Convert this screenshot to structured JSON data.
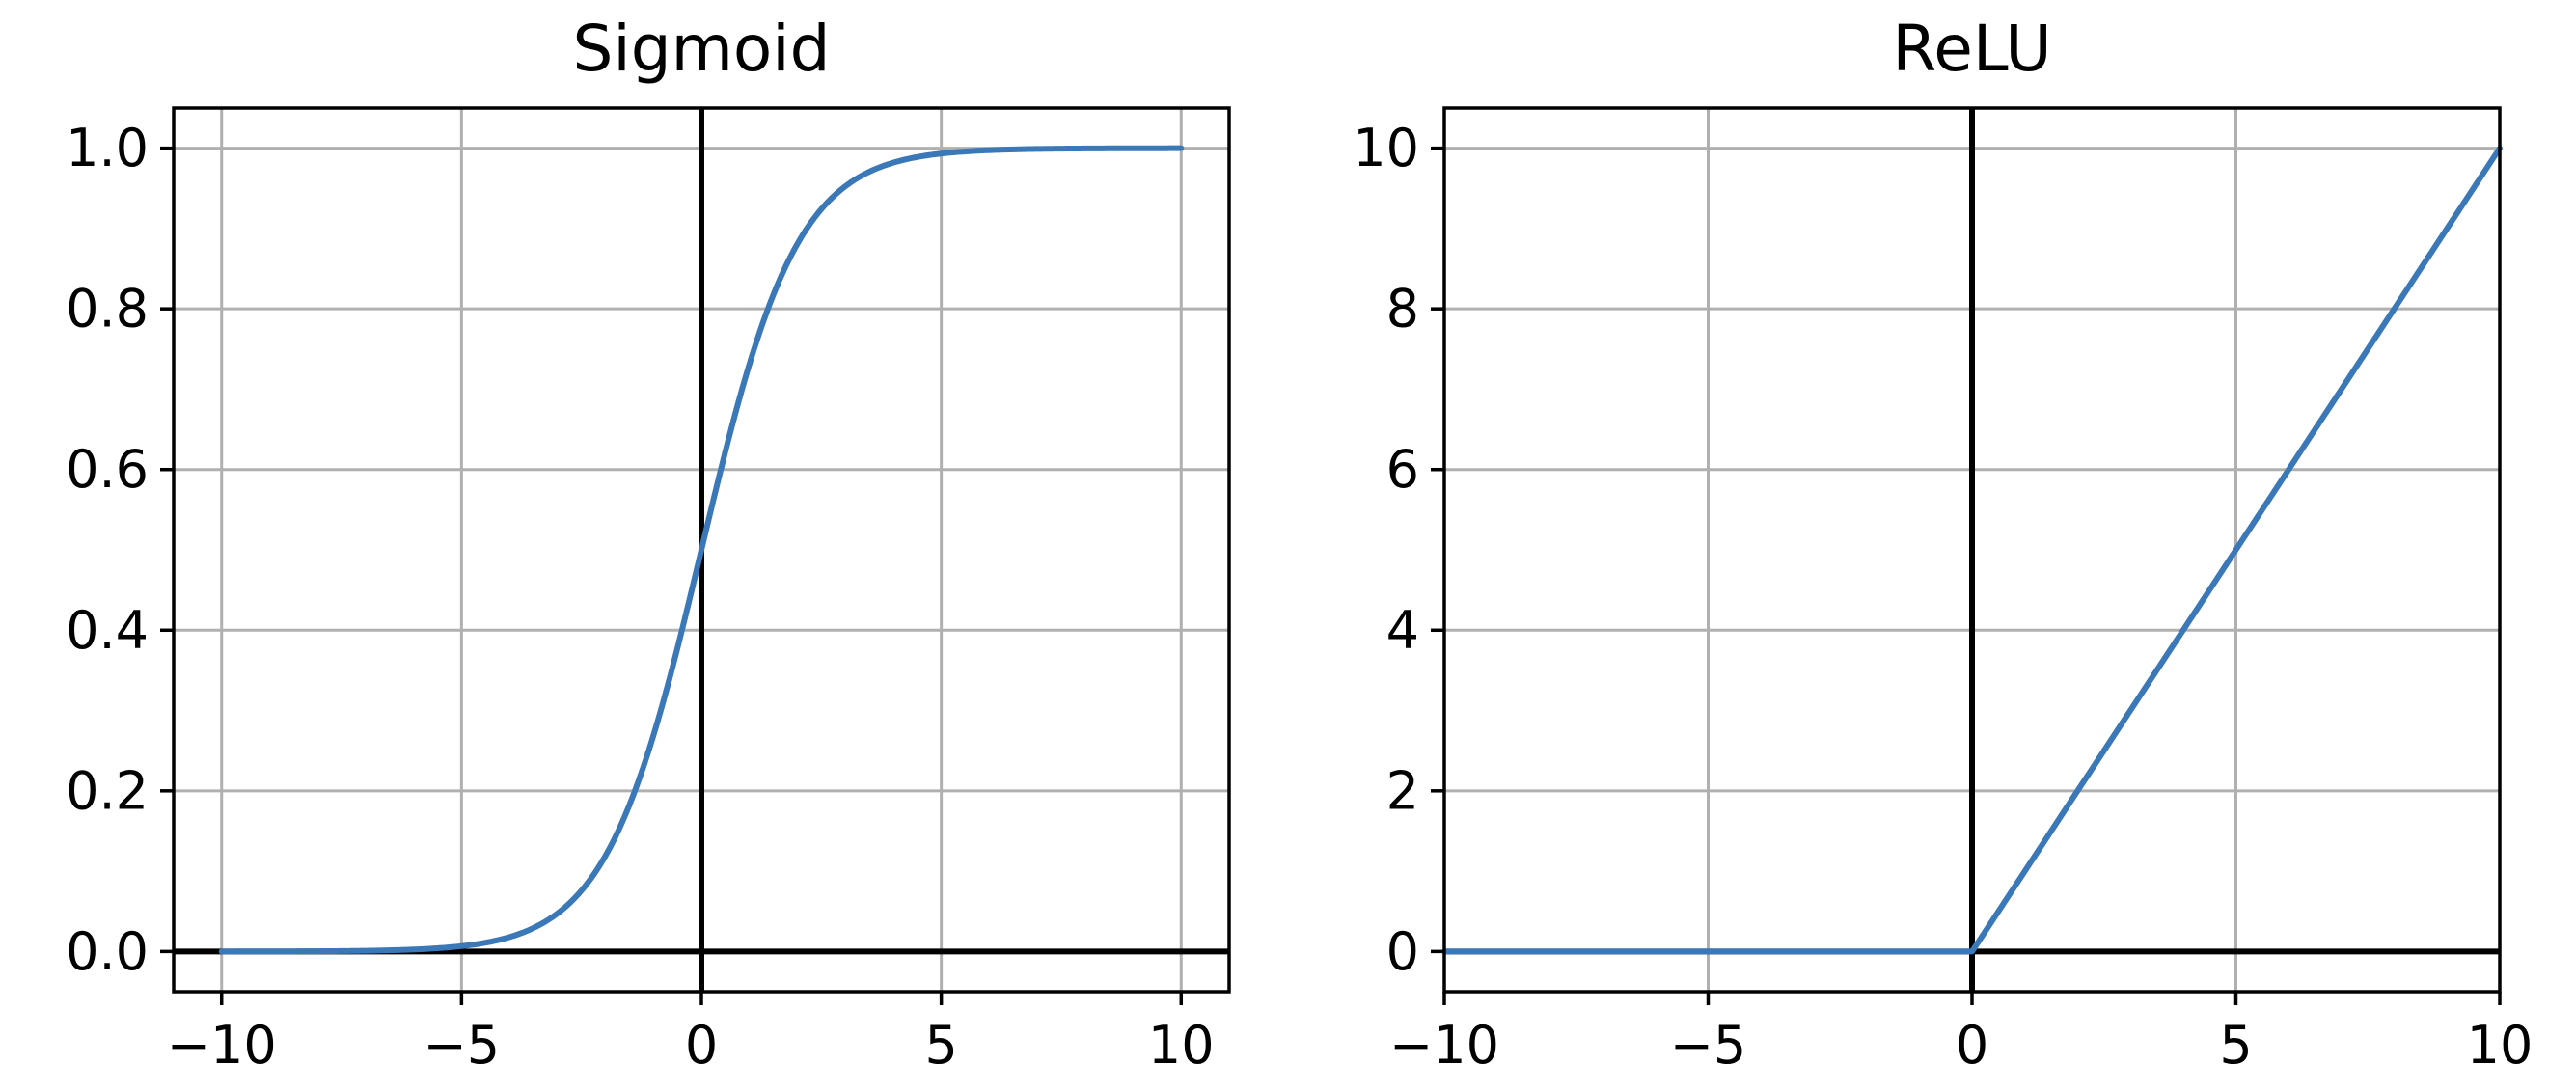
{
  "chart_data": [
    {
      "type": "line",
      "title": "Sigmoid",
      "xlabel": "",
      "ylabel": "",
      "xlim": [
        -11,
        11
      ],
      "ylim": [
        -0.05,
        1.05
      ],
      "xticks": [
        -10,
        -5,
        0,
        5,
        10
      ],
      "yticks": [
        0.0,
        0.2,
        0.4,
        0.6,
        0.8,
        1.0
      ],
      "xtick_labels": [
        "−10",
        "−5",
        "0",
        "5",
        "10"
      ],
      "ytick_labels": [
        "0.0",
        "0.2",
        "0.4",
        "0.6",
        "0.8",
        "1.0"
      ],
      "grid": true,
      "reference_lines": {
        "x": 0,
        "y": 0
      },
      "series": [
        {
          "color": "#3a78b8",
          "x": [
            -10,
            -9,
            -8,
            -7,
            -6,
            -5,
            -4,
            -3,
            -2.5,
            -2,
            -1.5,
            -1,
            -0.5,
            0,
            0.5,
            1,
            1.5,
            2,
            2.5,
            3,
            4,
            5,
            6,
            7,
            8,
            9,
            10
          ],
          "y": [
            5e-05,
            0.00012,
            0.00034,
            0.00091,
            0.00247,
            0.0067,
            0.018,
            0.0474,
            0.0759,
            0.1192,
            0.1824,
            0.2689,
            0.3775,
            0.5,
            0.6225,
            0.7311,
            0.8176,
            0.8808,
            0.9241,
            0.9526,
            0.982,
            0.9933,
            0.9975,
            0.9991,
            0.9997,
            0.9999,
            0.99995
          ]
        }
      ]
    },
    {
      "type": "line",
      "title": "ReLU",
      "xlabel": "",
      "ylabel": "",
      "xlim": [
        -10,
        10
      ],
      "ylim": [
        -0.5,
        10.5
      ],
      "xticks": [
        -10,
        -5,
        0,
        5,
        10
      ],
      "yticks": [
        0,
        2,
        4,
        6,
        8,
        10
      ],
      "xtick_labels": [
        "−10",
        "−5",
        "0",
        "5",
        "10"
      ],
      "ytick_labels": [
        "0",
        "2",
        "4",
        "6",
        "8",
        "10"
      ],
      "grid": true,
      "reference_lines": {
        "x": 0,
        "y": 0
      },
      "series": [
        {
          "color": "#3a78b8",
          "x": [
            -10,
            0,
            10
          ],
          "y": [
            0,
            0,
            10
          ]
        }
      ]
    }
  ]
}
